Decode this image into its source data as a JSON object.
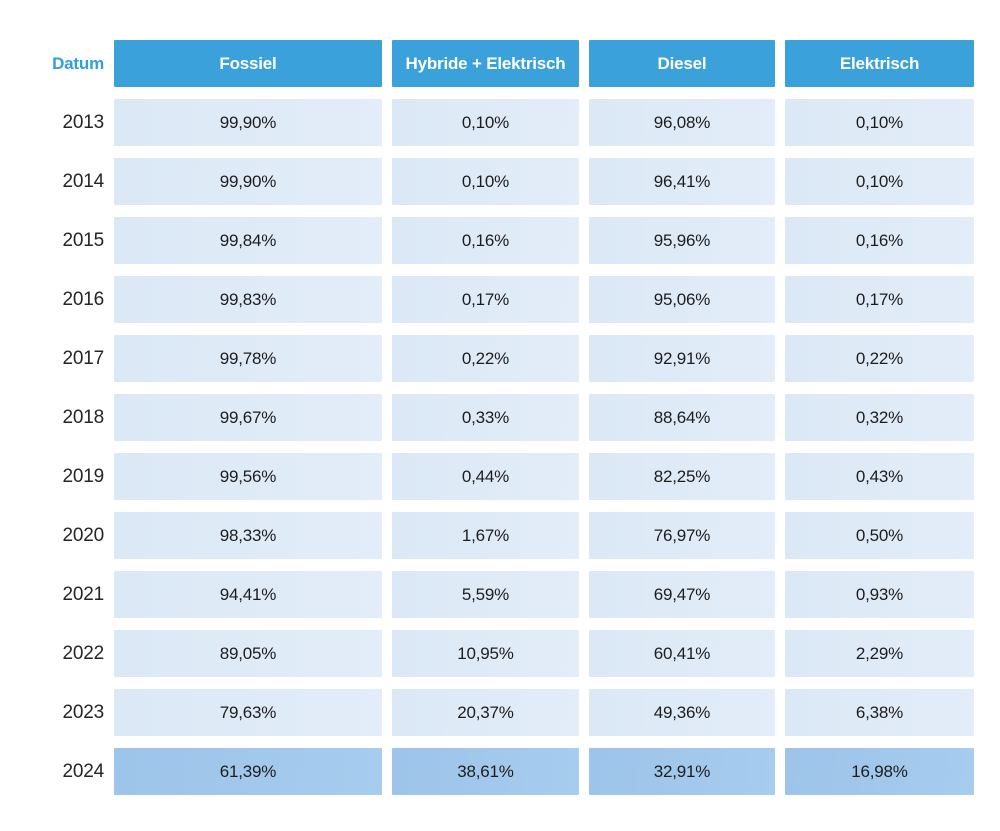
{
  "table": {
    "datum_label": "Datum",
    "columns": [
      "Fossiel",
      "Hybride + Elektrisch",
      "Diesel",
      "Elektrisch"
    ],
    "rows": [
      {
        "year": "2013",
        "values": [
          "99,90%",
          "0,10%",
          "96,08%",
          "0,10%"
        ],
        "highlight": false
      },
      {
        "year": "2014",
        "values": [
          "99,90%",
          "0,10%",
          "96,41%",
          "0,10%"
        ],
        "highlight": false
      },
      {
        "year": "2015",
        "values": [
          "99,84%",
          "0,16%",
          "95,96%",
          "0,16%"
        ],
        "highlight": false
      },
      {
        "year": "2016",
        "values": [
          "99,83%",
          "0,17%",
          "95,06%",
          "0,17%"
        ],
        "highlight": false
      },
      {
        "year": "2017",
        "values": [
          "99,78%",
          "0,22%",
          "92,91%",
          "0,22%"
        ],
        "highlight": false
      },
      {
        "year": "2018",
        "values": [
          "99,67%",
          "0,33%",
          "88,64%",
          "0,32%"
        ],
        "highlight": false
      },
      {
        "year": "2019",
        "values": [
          "99,56%",
          "0,44%",
          "82,25%",
          "0,43%"
        ],
        "highlight": false
      },
      {
        "year": "2020",
        "values": [
          "98,33%",
          "1,67%",
          "76,97%",
          "0,50%"
        ],
        "highlight": false
      },
      {
        "year": "2021",
        "values": [
          "94,41%",
          "5,59%",
          "69,47%",
          "0,93%"
        ],
        "highlight": false
      },
      {
        "year": "2022",
        "values": [
          "89,05%",
          "10,95%",
          "60,41%",
          "2,29%"
        ],
        "highlight": false
      },
      {
        "year": "2023",
        "values": [
          "79,63%",
          "20,37%",
          "49,36%",
          "6,38%"
        ],
        "highlight": false
      },
      {
        "year": "2024",
        "values": [
          "61,39%",
          "38,61%",
          "32,91%",
          "16,98%"
        ],
        "highlight": true
      }
    ]
  },
  "colors": {
    "header_bg": "#3BA1DB",
    "datum_text": "#2FA0DA",
    "cell_bg": "#DBE8F5",
    "highlight_bg": "#9DC4E9"
  },
  "chart_data": {
    "type": "table",
    "title": "",
    "categories": [
      "2013",
      "2014",
      "2015",
      "2016",
      "2017",
      "2018",
      "2019",
      "2020",
      "2021",
      "2022",
      "2023",
      "2024"
    ],
    "series": [
      {
        "name": "Fossiel",
        "values": [
          99.9,
          99.9,
          99.84,
          99.83,
          99.78,
          99.67,
          99.56,
          98.33,
          94.41,
          89.05,
          79.63,
          61.39
        ]
      },
      {
        "name": "Hybride + Elektrisch",
        "values": [
          0.1,
          0.1,
          0.16,
          0.17,
          0.22,
          0.33,
          0.44,
          1.67,
          5.59,
          10.95,
          20.37,
          38.61
        ]
      },
      {
        "name": "Diesel",
        "values": [
          96.08,
          96.41,
          95.96,
          95.06,
          92.91,
          88.64,
          82.25,
          76.97,
          69.47,
          60.41,
          49.36,
          32.91
        ]
      },
      {
        "name": "Elektrisch",
        "values": [
          0.1,
          0.1,
          0.16,
          0.17,
          0.22,
          0.32,
          0.43,
          0.5,
          0.93,
          2.29,
          6.38,
          16.98
        ]
      }
    ],
    "unit": "%",
    "decimal_separator": ","
  }
}
